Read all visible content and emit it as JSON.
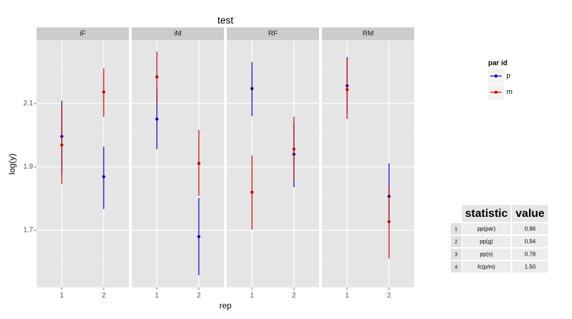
{
  "chart_data": {
    "type": "errorbar",
    "title": "test",
    "x_label": "rep",
    "y_label": "log(y)",
    "categories": [
      "1",
      "2"
    ],
    "ylim": [
      1.52,
      2.3
    ],
    "yticks": [
      1.7,
      1.9,
      2.1
    ],
    "minor_yticks": [
      1.6,
      1.8,
      2.0,
      2.2
    ],
    "grid": true,
    "legend_title": "par id",
    "legend_position": "right",
    "series": [
      {
        "name": "p",
        "color": "#0000cc"
      },
      {
        "name": "m",
        "color": "#cc0000"
      }
    ],
    "panels": [
      {
        "title": "iF",
        "series": [
          {
            "values": [
              1.996,
              1.869
            ],
            "lower": [
              1.88,
              1.767
            ],
            "upper": [
              2.109,
              1.964
            ]
          },
          {
            "values": [
              1.969,
              2.136
            ],
            "lower": [
              1.847,
              2.058
            ],
            "upper": [
              2.09,
              2.211
            ]
          }
        ]
      },
      {
        "title": "iM",
        "series": [
          {
            "values": [
              2.051,
              1.68
            ],
            "lower": [
              1.956,
              1.558
            ],
            "upper": [
              2.15,
              1.802
            ]
          },
          {
            "values": [
              2.184,
              1.911
            ],
            "lower": [
              2.1,
              1.809
            ],
            "upper": [
              2.264,
              2.016
            ]
          }
        ]
      },
      {
        "title": "RF",
        "series": [
          {
            "values": [
              2.147,
              1.94
            ],
            "lower": [
              2.06,
              1.836
            ],
            "upper": [
              2.231,
              2.04
            ]
          },
          {
            "values": [
              1.82,
              1.956
            ],
            "lower": [
              1.702,
              1.86
            ],
            "upper": [
              1.936,
              2.058
            ]
          }
        ]
      },
      {
        "title": "RM",
        "series": [
          {
            "values": [
              2.156,
              1.807
            ],
            "lower": [
              2.07,
              1.73
            ],
            "upper": [
              2.247,
              1.911
            ]
          },
          {
            "values": [
              2.144,
              1.727
            ],
            "lower": [
              2.051,
              1.611
            ],
            "upper": [
              2.24,
              1.84
            ]
          }
        ]
      }
    ]
  },
  "table": {
    "header": [
      "statistic",
      "value"
    ],
    "rows": [
      [
        "1",
        "pp(par)",
        "0.96"
      ],
      [
        "2",
        "pp(g)",
        "0.94"
      ],
      [
        "3",
        "pp(s)",
        "0.78"
      ],
      [
        "4",
        "fc(p/m)",
        "1.50"
      ]
    ]
  }
}
